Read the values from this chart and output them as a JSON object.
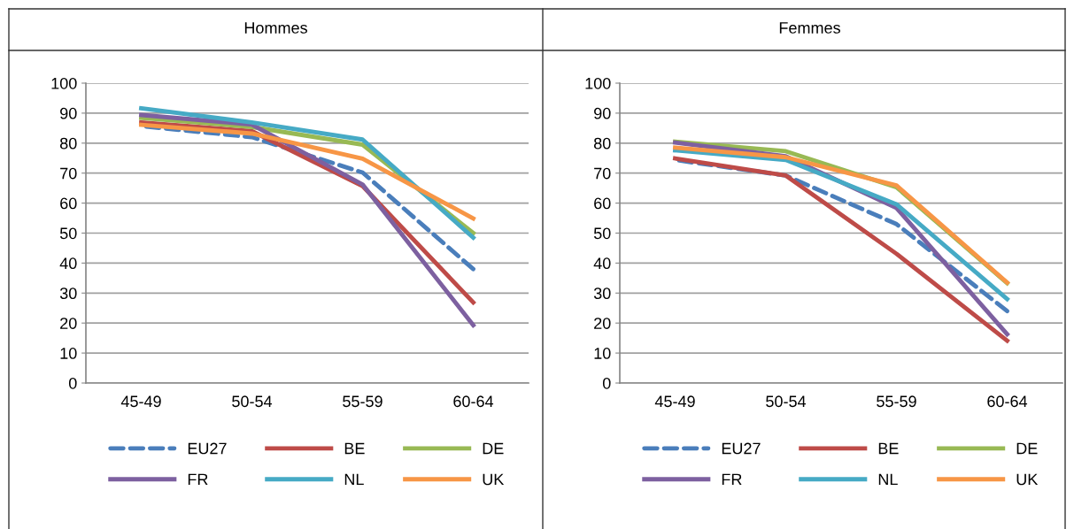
{
  "chart_data": [
    {
      "type": "line",
      "title": "Hommes",
      "categories": [
        "45-49",
        "50-54",
        "55-59",
        "60-64"
      ],
      "ylim": [
        0,
        100
      ],
      "yticks": [
        0,
        10,
        20,
        30,
        40,
        50,
        60,
        70,
        80,
        90,
        100
      ],
      "grid": "y",
      "legend": "bottom",
      "marker": "none",
      "series": [
        {
          "name": "EU27",
          "color": "#4a7ebb",
          "line_style": "dashed",
          "values": [
            85.7,
            82,
            70.2,
            38
          ]
        },
        {
          "name": "BE",
          "color": "#be4b48",
          "values": [
            86.9,
            84,
            65.7,
            26.9
          ]
        },
        {
          "name": "DE",
          "color": "#98b954",
          "values": [
            88.4,
            85.4,
            79.5,
            50
          ]
        },
        {
          "name": "FR",
          "color": "#7d60a0",
          "values": [
            89.4,
            86.2,
            66.2,
            19.3
          ]
        },
        {
          "name": "NL",
          "color": "#46aac5",
          "values": [
            91.6,
            86.9,
            81.2,
            48.5
          ]
        },
        {
          "name": "UK",
          "color": "#f79646",
          "values": [
            86.1,
            83.2,
            74.8,
            54.9
          ]
        }
      ]
    },
    {
      "type": "line",
      "title": "Femmes",
      "categories": [
        "45-49",
        "50-54",
        "55-59",
        "60-64"
      ],
      "ylim": [
        0,
        100
      ],
      "yticks": [
        0,
        10,
        20,
        30,
        40,
        50,
        60,
        70,
        80,
        90,
        100
      ],
      "grid": "y",
      "legend": "bottom",
      "marker": "none",
      "series": [
        {
          "name": "EU27",
          "color": "#4a7ebb",
          "line_style": "dashed",
          "values": [
            74.4,
            69.2,
            53,
            24
          ]
        },
        {
          "name": "BE",
          "color": "#be4b48",
          "values": [
            74.9,
            69.2,
            43.1,
            14.1
          ]
        },
        {
          "name": "DE",
          "color": "#98b954",
          "values": [
            80.5,
            77.3,
            65.3,
            33.3
          ]
        },
        {
          "name": "FR",
          "color": "#7d60a0",
          "values": [
            80.2,
            75.6,
            58.4,
            16.3
          ]
        },
        {
          "name": "NL",
          "color": "#46aac5",
          "values": [
            77.6,
            74.4,
            59.6,
            28
          ]
        },
        {
          "name": "UK",
          "color": "#f79646",
          "values": [
            78.5,
            75.3,
            65.9,
            33.5
          ]
        }
      ]
    }
  ]
}
